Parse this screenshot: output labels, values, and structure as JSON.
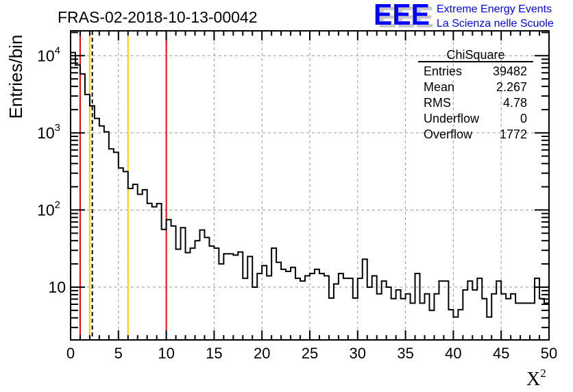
{
  "chart_data": {
    "type": "bar",
    "style": "step-histogram",
    "title": "FRAS-02-2018-10-13-00042",
    "xlabel": "X",
    "xlabel_superscript": "2",
    "ylabel": "Entries/bin",
    "xlim": [
      0,
      50
    ],
    "ylim": [
      2.07,
      21000
    ],
    "yscale": "log",
    "grid": true,
    "bin_width": 0.5,
    "x_ticks": [
      "0",
      "5",
      "10",
      "15",
      "20",
      "25",
      "30",
      "35",
      "40",
      "45",
      "50"
    ],
    "y_ticks": [
      {
        "value": 10,
        "base": "10",
        "exp": ""
      },
      {
        "value": 100,
        "base": "10",
        "exp": "2"
      },
      {
        "value": 1000,
        "base": "10",
        "exp": "3"
      },
      {
        "value": 10000,
        "base": "10",
        "exp": "4"
      }
    ],
    "values": [
      11000,
      7600,
      5800,
      3140,
      2240,
      1540,
      1230,
      1030,
      620,
      560,
      350,
      315,
      190,
      215,
      160,
      183,
      122,
      110,
      121,
      56,
      75,
      62,
      31,
      59,
      28,
      32,
      40,
      55,
      44,
      34,
      32,
      20,
      27,
      27,
      26,
      28.5,
      13,
      25,
      10,
      15,
      19,
      14,
      32,
      21,
      17,
      16,
      18,
      13,
      12,
      14,
      15,
      17,
      15,
      14,
      7.2,
      11,
      15,
      13,
      13,
      7.2,
      13,
      23,
      10,
      14,
      8.2,
      12,
      10,
      7.1,
      9.2,
      7.1,
      8.2,
      6.2,
      15,
      6.2,
      8.2,
      5.0,
      8.2,
      12,
      12,
      5.1,
      4.1,
      5.1,
      9.2,
      12,
      9.2,
      13,
      7.1,
      4.1,
      8.2,
      12,
      8.2,
      7.1,
      8.2,
      6.2,
      6.2,
      6.2,
      6.2,
      13,
      7.1,
      6.2
    ],
    "vertical_lines": [
      {
        "x": 1,
        "color": "#ff0000",
        "style": "solid"
      },
      {
        "x": 2,
        "color": "#ffcc00",
        "style": "solid"
      },
      {
        "x": 2.267,
        "color": "#000000",
        "style": "dashed"
      },
      {
        "x": 6,
        "color": "#ffcc00",
        "style": "solid"
      },
      {
        "x": 10,
        "color": "#ff0000",
        "style": "solid"
      }
    ],
    "stats": {
      "title": "ChiSquare",
      "rows": [
        {
          "label": "Entries",
          "value": "39482"
        },
        {
          "label": "Mean",
          "value": "2.267"
        },
        {
          "label": "RMS",
          "value": "4.78"
        },
        {
          "label": "Underflow",
          "value": "0"
        },
        {
          "label": "Overflow",
          "value": "1772"
        }
      ]
    }
  },
  "logo": {
    "mark": "EEE",
    "line1": "Extreme Energy Events",
    "line2": "La Scienza nelle Scuole",
    "color": "#0000ff"
  }
}
